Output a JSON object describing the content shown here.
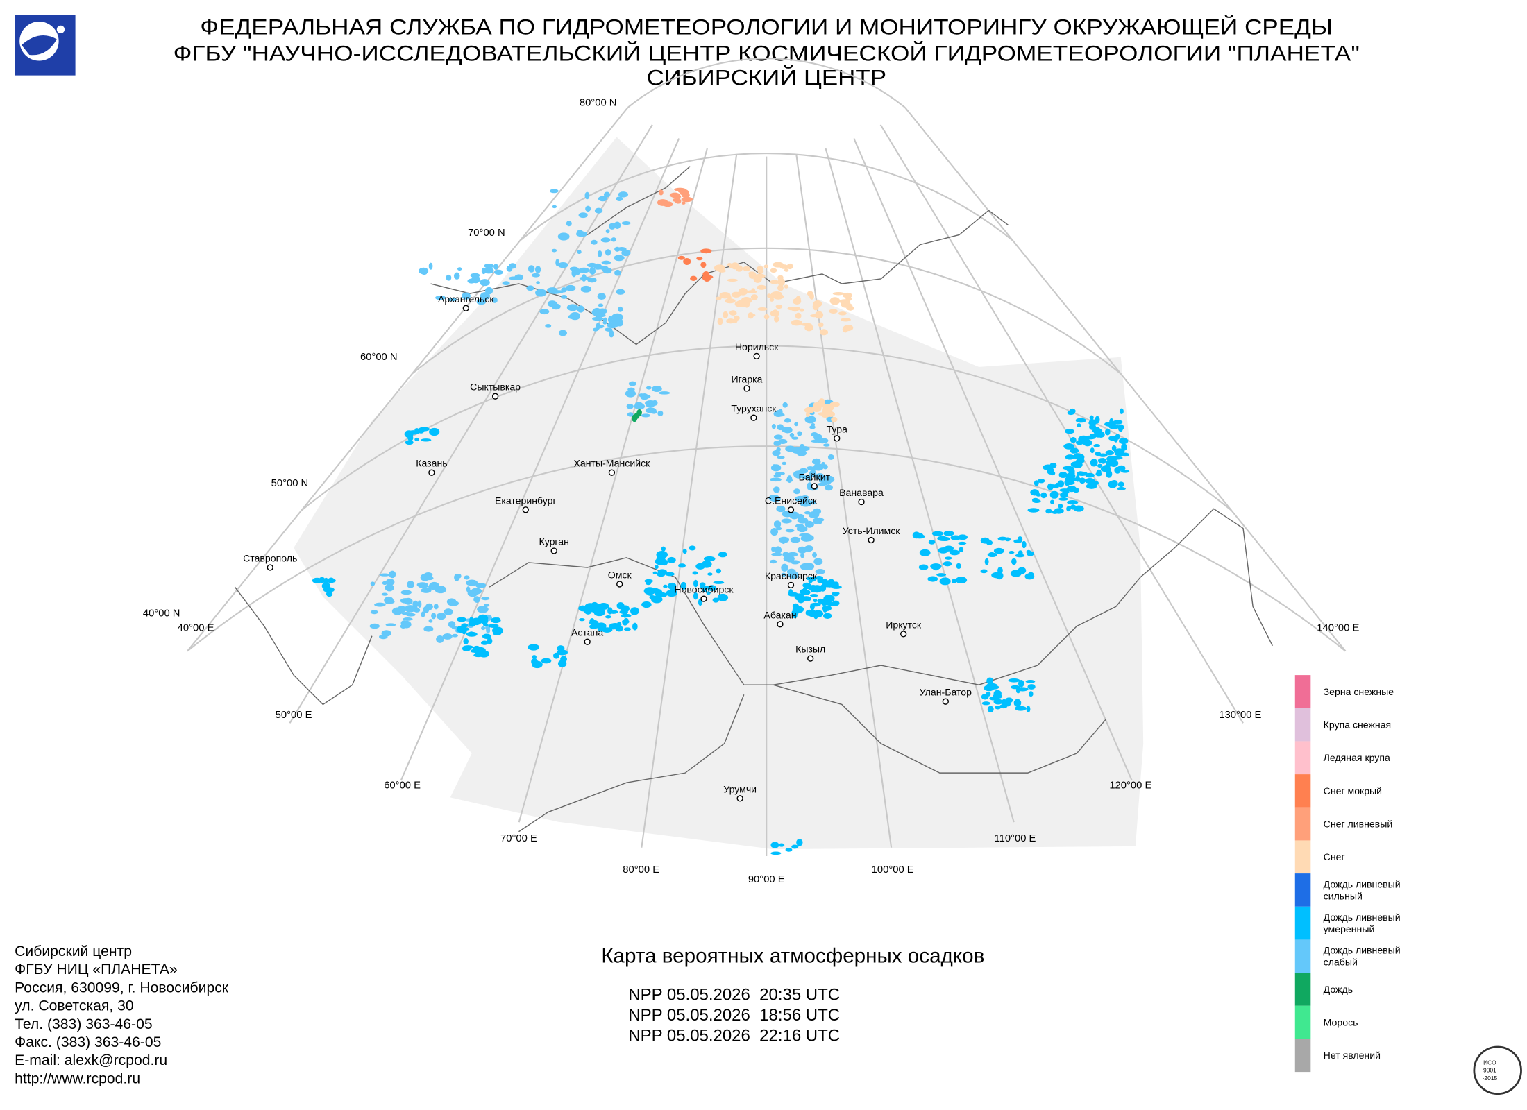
{
  "header": {
    "lines": [
      "ФЕДЕРАЛЬНАЯ СЛУЖБА ПО ГИДРОМЕТЕОРОЛОГИИ И МОНИТОРИНГУ ОКРУЖАЮЩЕЙ СРЕДЫ",
      "ФГБУ \"НАУЧНО-ИССЛЕДОВАТЕЛЬСКИЙ ЦЕНТР КОСМИЧЕСКОЙ ГИДРОМЕТЕОРОЛОГИИ \"ПЛАНЕТА\"",
      "СИБИРСКИЙ ЦЕНТР"
    ]
  },
  "map": {
    "graticule_labels": [
      "80°00 N",
      "70°00 N",
      "60°00 N",
      "50°00 N",
      "40°00 N",
      "40°00 E",
      "50°00 E",
      "60°00 E",
      "70°00 E",
      "80°00 E",
      "90°00 E",
      "100°00 E",
      "110°00 E",
      "120°00 E",
      "130°00 E",
      "140°00 E"
    ],
    "cities": [
      "Архангельск",
      "Сыктывкар",
      "Казань",
      "Екатеринбург",
      "Курган",
      "Ставрополь",
      "Ханты-Мансийск",
      "Омск",
      "Новосибирск",
      "Астана",
      "Норильск",
      "Игарка",
      "Туруханск",
      "Тура",
      "Байкит",
      "С.Енисейск",
      "Ванавара",
      "Усть-Илимск",
      "Красноярск",
      "Абакан",
      "Иркутск",
      "Кызыл",
      "Улан-Батор",
      "Урумчи"
    ]
  },
  "legend": {
    "items": [
      {
        "lines": [
          "Зерна снежные"
        ],
        "color": "#f06e96"
      },
      {
        "lines": [
          "Крупа снежная"
        ],
        "color": "#e0c0dc"
      },
      {
        "lines": [
          "Ледяная крупа"
        ],
        "color": "#ffc0cc"
      },
      {
        "lines": [
          "Снег мокрый"
        ],
        "color": "#ff8050"
      },
      {
        "lines": [
          "Снег ливневый"
        ],
        "color": "#ffa07a"
      },
      {
        "lines": [
          "Снег"
        ],
        "color": "#ffdab4"
      },
      {
        "lines": [
          "Дождь ливневый",
          "сильный"
        ],
        "color": "#1e6ee6"
      },
      {
        "lines": [
          "Дождь ливневый",
          "умеренный"
        ],
        "color": "#00bfff"
      },
      {
        "lines": [
          "Дождь ливневый",
          "слабый"
        ],
        "color": "#64c8fa"
      },
      {
        "lines": [
          "Дождь"
        ],
        "color": "#10a860"
      },
      {
        "lines": [
          "Морось"
        ],
        "color": "#40e890"
      },
      {
        "lines": [
          "Нет явлений"
        ],
        "color": "#a8a8a8"
      }
    ]
  },
  "caption": {
    "title": "Карта вероятных атмосферных осадков",
    "passes": [
      "NPP 05.05.2026  20:35 UTC",
      "NPP 05.05.2026  18:56 UTC",
      "NPP 05.05.2026  22:16 UTC"
    ]
  },
  "footer": {
    "lines": [
      "Сибирский центр",
      "ФГБУ НИЦ «ПЛАНЕТА»",
      "Россия, 630099, г. Новосибирск",
      "ул. Советская, 30",
      "Тел. (383) 363-46-05",
      "Факс. (383) 363-46-05",
      "E-mail: alexk@rcpod.ru",
      "http://www.rcpod.ru"
    ]
  },
  "iso_badge": {
    "lines": [
      "ИСО",
      "9001",
      "-2015"
    ]
  }
}
